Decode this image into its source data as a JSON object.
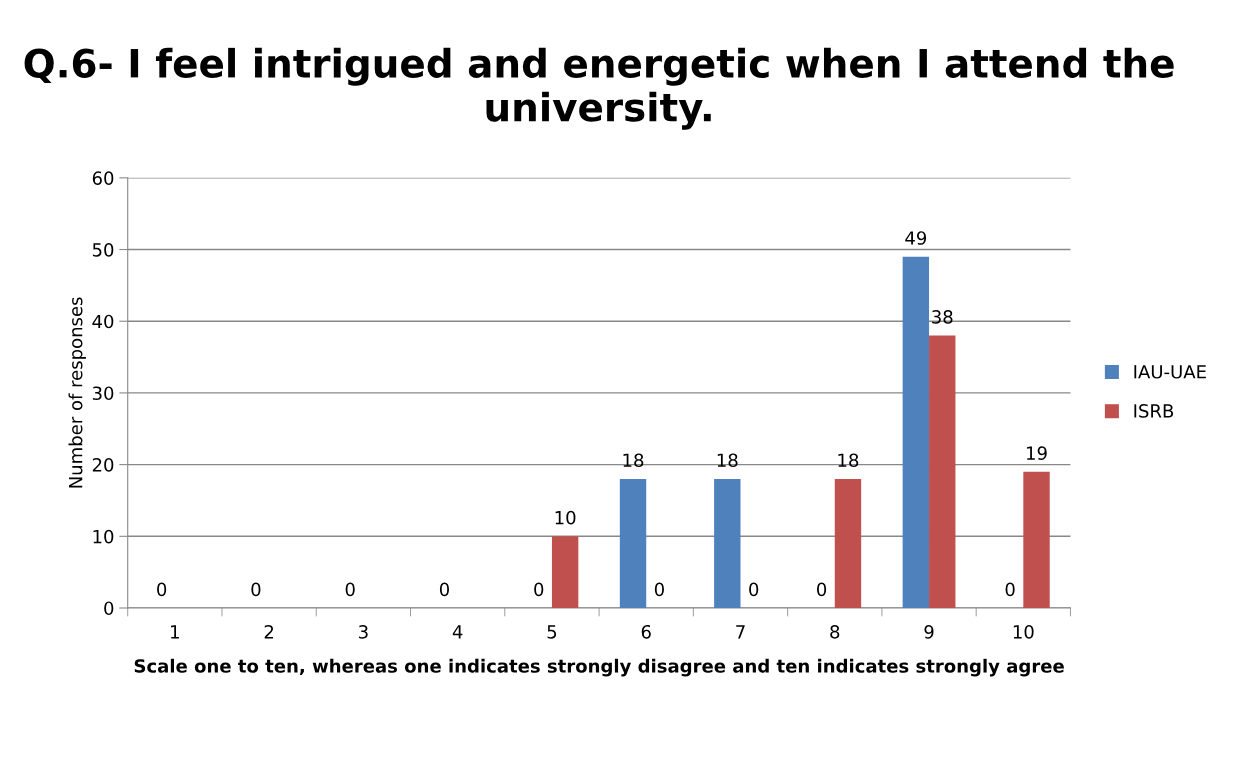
{
  "chart_data": {
    "type": "bar",
    "title": "Q.6- I feel intrigued and energetic when I attend the university.",
    "xlabel": "Scale one to ten, whereas one indicates strongly disagree and ten indicates strongly agree",
    "ylabel": "Number of responses",
    "categories": [
      "1",
      "2",
      "3",
      "4",
      "5",
      "6",
      "7",
      "8",
      "9",
      "10"
    ],
    "series": [
      {
        "name": "IAU-UAE",
        "color": "#4f81bd",
        "values": [
          0,
          0,
          0,
          0,
          0,
          18,
          18,
          0,
          49,
          0
        ]
      },
      {
        "name": "ISRB",
        "color": "#c0504d",
        "values": [
          null,
          null,
          null,
          null,
          10,
          0,
          0,
          18,
          38,
          19
        ]
      }
    ],
    "ylim": [
      0,
      60
    ],
    "yticks": [
      0,
      10,
      20,
      30,
      40,
      50,
      60
    ],
    "grid": "y",
    "legend": "right",
    "data_labels": true
  }
}
